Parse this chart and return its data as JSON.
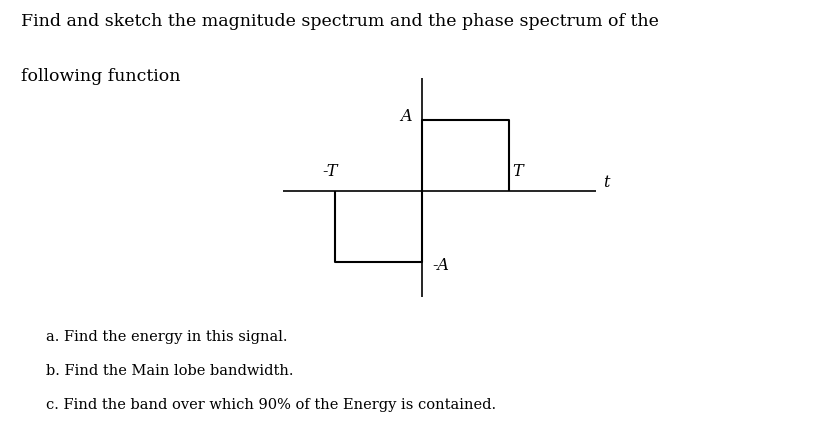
{
  "title_line1": "Find and sketch the magnitude spectrum and the phase spectrum of the",
  "title_line2": "following function",
  "signal_x": [
    -1.0,
    -1.0,
    0.0,
    0.0,
    1.0,
    1.0
  ],
  "signal_y": [
    0.0,
    -1.0,
    -1.0,
    1.0,
    1.0,
    0.0
  ],
  "axis_color": "#000000",
  "signal_color": "#000000",
  "label_A": "A",
  "label_negA": "-A",
  "label_negT": "-T",
  "label_T": "T",
  "label_t": "t",
  "text_a": "a. Find the energy in this signal.",
  "text_b": "b. Find the Main lobe bandwidth.",
  "text_c": "c. Find the band over which 90% of the Energy is contained.",
  "xlim": [
    -1.8,
    2.2
  ],
  "ylim": [
    -1.7,
    1.8
  ],
  "h_axis_x_start": -1.6,
  "h_axis_x_end": 2.0,
  "v_axis_y_start": -1.5,
  "v_axis_y_end": 1.6,
  "tick_neg_T": -1.0,
  "tick_T": 1.0,
  "amplitude": 1.0,
  "background_color": "#ffffff",
  "text_fontsize": 10.5,
  "label_fontsize": 11.5,
  "title_fontsize": 12.5
}
